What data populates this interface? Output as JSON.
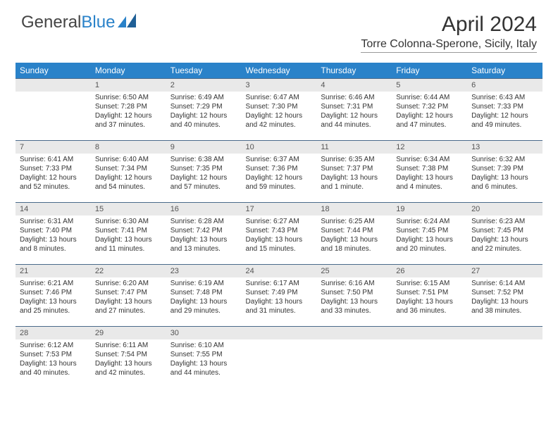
{
  "brand": {
    "part1": "General",
    "part2": "Blue"
  },
  "title": "April 2024",
  "location": "Torre Colonna-Sperone, Sicily, Italy",
  "colors": {
    "header_bg": "#2a82c9",
    "header_text": "#ffffff",
    "daynum_bg": "#e9e9e9",
    "daynum_text": "#555555",
    "body_text": "#333333",
    "rule": "#4a6a8a"
  },
  "typography": {
    "title_fontsize": 30,
    "location_fontsize": 16,
    "dayheader_fontsize": 12,
    "cell_fontsize": 10
  },
  "day_headers": [
    "Sunday",
    "Monday",
    "Tuesday",
    "Wednesday",
    "Thursday",
    "Friday",
    "Saturday"
  ],
  "weeks": [
    [
      null,
      {
        "n": "1",
        "sr": "Sunrise: 6:50 AM",
        "ss": "Sunset: 7:28 PM",
        "dl": "Daylight: 12 hours and 37 minutes."
      },
      {
        "n": "2",
        "sr": "Sunrise: 6:49 AM",
        "ss": "Sunset: 7:29 PM",
        "dl": "Daylight: 12 hours and 40 minutes."
      },
      {
        "n": "3",
        "sr": "Sunrise: 6:47 AM",
        "ss": "Sunset: 7:30 PM",
        "dl": "Daylight: 12 hours and 42 minutes."
      },
      {
        "n": "4",
        "sr": "Sunrise: 6:46 AM",
        "ss": "Sunset: 7:31 PM",
        "dl": "Daylight: 12 hours and 44 minutes."
      },
      {
        "n": "5",
        "sr": "Sunrise: 6:44 AM",
        "ss": "Sunset: 7:32 PM",
        "dl": "Daylight: 12 hours and 47 minutes."
      },
      {
        "n": "6",
        "sr": "Sunrise: 6:43 AM",
        "ss": "Sunset: 7:33 PM",
        "dl": "Daylight: 12 hours and 49 minutes."
      }
    ],
    [
      {
        "n": "7",
        "sr": "Sunrise: 6:41 AM",
        "ss": "Sunset: 7:33 PM",
        "dl": "Daylight: 12 hours and 52 minutes."
      },
      {
        "n": "8",
        "sr": "Sunrise: 6:40 AM",
        "ss": "Sunset: 7:34 PM",
        "dl": "Daylight: 12 hours and 54 minutes."
      },
      {
        "n": "9",
        "sr": "Sunrise: 6:38 AM",
        "ss": "Sunset: 7:35 PM",
        "dl": "Daylight: 12 hours and 57 minutes."
      },
      {
        "n": "10",
        "sr": "Sunrise: 6:37 AM",
        "ss": "Sunset: 7:36 PM",
        "dl": "Daylight: 12 hours and 59 minutes."
      },
      {
        "n": "11",
        "sr": "Sunrise: 6:35 AM",
        "ss": "Sunset: 7:37 PM",
        "dl": "Daylight: 13 hours and 1 minute."
      },
      {
        "n": "12",
        "sr": "Sunrise: 6:34 AM",
        "ss": "Sunset: 7:38 PM",
        "dl": "Daylight: 13 hours and 4 minutes."
      },
      {
        "n": "13",
        "sr": "Sunrise: 6:32 AM",
        "ss": "Sunset: 7:39 PM",
        "dl": "Daylight: 13 hours and 6 minutes."
      }
    ],
    [
      {
        "n": "14",
        "sr": "Sunrise: 6:31 AM",
        "ss": "Sunset: 7:40 PM",
        "dl": "Daylight: 13 hours and 8 minutes."
      },
      {
        "n": "15",
        "sr": "Sunrise: 6:30 AM",
        "ss": "Sunset: 7:41 PM",
        "dl": "Daylight: 13 hours and 11 minutes."
      },
      {
        "n": "16",
        "sr": "Sunrise: 6:28 AM",
        "ss": "Sunset: 7:42 PM",
        "dl": "Daylight: 13 hours and 13 minutes."
      },
      {
        "n": "17",
        "sr": "Sunrise: 6:27 AM",
        "ss": "Sunset: 7:43 PM",
        "dl": "Daylight: 13 hours and 15 minutes."
      },
      {
        "n": "18",
        "sr": "Sunrise: 6:25 AM",
        "ss": "Sunset: 7:44 PM",
        "dl": "Daylight: 13 hours and 18 minutes."
      },
      {
        "n": "19",
        "sr": "Sunrise: 6:24 AM",
        "ss": "Sunset: 7:45 PM",
        "dl": "Daylight: 13 hours and 20 minutes."
      },
      {
        "n": "20",
        "sr": "Sunrise: 6:23 AM",
        "ss": "Sunset: 7:45 PM",
        "dl": "Daylight: 13 hours and 22 minutes."
      }
    ],
    [
      {
        "n": "21",
        "sr": "Sunrise: 6:21 AM",
        "ss": "Sunset: 7:46 PM",
        "dl": "Daylight: 13 hours and 25 minutes."
      },
      {
        "n": "22",
        "sr": "Sunrise: 6:20 AM",
        "ss": "Sunset: 7:47 PM",
        "dl": "Daylight: 13 hours and 27 minutes."
      },
      {
        "n": "23",
        "sr": "Sunrise: 6:19 AM",
        "ss": "Sunset: 7:48 PM",
        "dl": "Daylight: 13 hours and 29 minutes."
      },
      {
        "n": "24",
        "sr": "Sunrise: 6:17 AM",
        "ss": "Sunset: 7:49 PM",
        "dl": "Daylight: 13 hours and 31 minutes."
      },
      {
        "n": "25",
        "sr": "Sunrise: 6:16 AM",
        "ss": "Sunset: 7:50 PM",
        "dl": "Daylight: 13 hours and 33 minutes."
      },
      {
        "n": "26",
        "sr": "Sunrise: 6:15 AM",
        "ss": "Sunset: 7:51 PM",
        "dl": "Daylight: 13 hours and 36 minutes."
      },
      {
        "n": "27",
        "sr": "Sunrise: 6:14 AM",
        "ss": "Sunset: 7:52 PM",
        "dl": "Daylight: 13 hours and 38 minutes."
      }
    ],
    [
      {
        "n": "28",
        "sr": "Sunrise: 6:12 AM",
        "ss": "Sunset: 7:53 PM",
        "dl": "Daylight: 13 hours and 40 minutes."
      },
      {
        "n": "29",
        "sr": "Sunrise: 6:11 AM",
        "ss": "Sunset: 7:54 PM",
        "dl": "Daylight: 13 hours and 42 minutes."
      },
      {
        "n": "30",
        "sr": "Sunrise: 6:10 AM",
        "ss": "Sunset: 7:55 PM",
        "dl": "Daylight: 13 hours and 44 minutes."
      },
      null,
      null,
      null,
      null
    ]
  ]
}
